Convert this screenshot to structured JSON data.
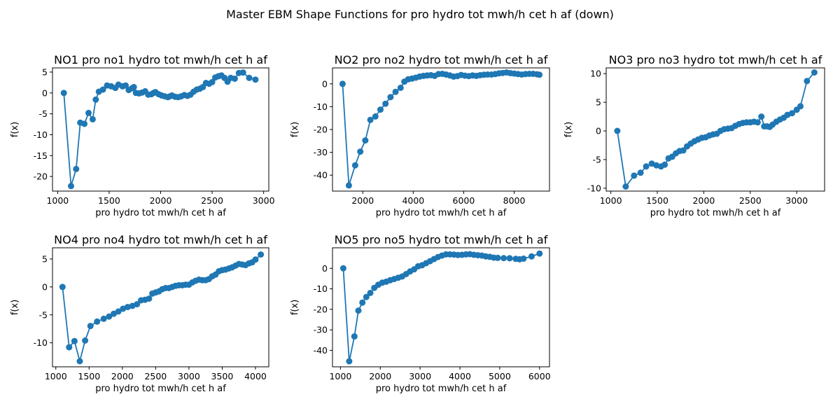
{
  "figure": {
    "title": "Master EBM Shape Functions for pro  hydro tot mwh/h cet h af (down)"
  },
  "colors": {
    "series": "#1f77b4",
    "axes": "#000000"
  },
  "chart_data": [
    {
      "type": "line",
      "title": "NO1 pro no1 hydro tot mwh/h cet h af",
      "xlabel": "pro  hydro tot mwh/h cet h af",
      "ylabel": "f(x)",
      "xlim": [
        950,
        3050
      ],
      "ylim": [
        -23.5,
        6
      ],
      "xticks": [
        1000,
        1500,
        2000,
        2500,
        3000
      ],
      "yticks": [
        -20,
        -15,
        -10,
        -5,
        0,
        5
      ],
      "markers": true,
      "x": [
        1060,
        1130,
        1180,
        1220,
        1260,
        1300,
        1340,
        1370,
        1400,
        1440,
        1480,
        1520,
        1560,
        1590,
        1630,
        1660,
        1690,
        1720,
        1740,
        1760,
        1790,
        1820,
        1850,
        1880,
        1910,
        1930,
        1950,
        1980,
        2010,
        2040,
        2070,
        2090,
        2110,
        2140,
        2170,
        2200,
        2230,
        2260,
        2290,
        2320,
        2350,
        2380,
        2410,
        2440,
        2470,
        2500,
        2530,
        2560,
        2590,
        2620,
        2650,
        2680,
        2720,
        2760,
        2800,
        2860,
        2920
      ],
      "y": [
        0,
        -22.3,
        -18.2,
        -7.1,
        -7.4,
        -4.8,
        -6.3,
        -1.6,
        0.3,
        0.8,
        1.8,
        1.6,
        1.2,
        2.0,
        1.6,
        1.8,
        0.7,
        1.1,
        1.4,
        0.0,
        -0.1,
        0.1,
        0.4,
        -0.4,
        -0.3,
        0.0,
        0.2,
        -0.3,
        -0.6,
        -0.8,
        -1.0,
        -0.8,
        -0.6,
        -0.9,
        -1.0,
        -0.8,
        -0.5,
        -0.7,
        -0.4,
        0.3,
        0.8,
        1.0,
        1.4,
        2.4,
        2.2,
        2.6,
        3.7,
        4.0,
        4.2,
        3.6,
        2.7,
        3.6,
        3.4,
        4.8,
        4.9,
        3.6,
        3.2
      ]
    },
    {
      "type": "line",
      "title": "NO2 pro no2 hydro tot mwh/h cet h af",
      "xlabel": "pro  hydro tot mwh/h cet h af",
      "ylabel": "f(x)",
      "xlim": [
        800,
        9400
      ],
      "ylim": [
        -47,
        7
      ],
      "xticks": [
        2000,
        4000,
        6000,
        8000
      ],
      "yticks": [
        -40,
        -30,
        -20,
        -10,
        0
      ],
      "markers": true,
      "x": [
        1200,
        1450,
        1700,
        1900,
        2100,
        2300,
        2500,
        2700,
        2900,
        3100,
        3300,
        3500,
        3650,
        3800,
        3950,
        4100,
        4250,
        4400,
        4550,
        4700,
        4850,
        5000,
        5150,
        5300,
        5450,
        5600,
        5750,
        5900,
        6050,
        6200,
        6350,
        6500,
        6650,
        6800,
        6950,
        7100,
        7250,
        7400,
        7550,
        7700,
        7850,
        8000,
        8150,
        8300,
        8450,
        8600,
        8750,
        8900,
        9000
      ],
      "y": [
        0,
        -44.5,
        -35.7,
        -29.7,
        -24.8,
        -15.8,
        -14.3,
        -11.3,
        -8.7,
        -5.8,
        -3.5,
        -1.7,
        1.0,
        2.0,
        2.3,
        2.7,
        3.2,
        3.5,
        3.7,
        3.8,
        3.5,
        4.3,
        4.4,
        4.1,
        3.7,
        3.2,
        3.4,
        3.9,
        3.6,
        3.4,
        3.7,
        3.5,
        3.8,
        4.0,
        4.1,
        4.1,
        4.3,
        4.6,
        4.8,
        5.0,
        4.7,
        4.5,
        4.3,
        4.1,
        4.3,
        4.4,
        4.4,
        4.2,
        4.0
      ]
    },
    {
      "type": "line",
      "title": "NO3 pro no3 hydro tot mwh/h cet h af",
      "xlabel": "pro  hydro tot mwh/h cet h af",
      "ylabel": "f(x)",
      "xlim": [
        950,
        3300
      ],
      "ylim": [
        -10.5,
        11
      ],
      "xticks": [
        1000,
        1500,
        2000,
        2500,
        3000
      ],
      "yticks": [
        -10,
        -5,
        0,
        5,
        10
      ],
      "markers": true,
      "x": [
        1070,
        1160,
        1250,
        1320,
        1380,
        1440,
        1490,
        1540,
        1580,
        1620,
        1660,
        1700,
        1740,
        1780,
        1820,
        1860,
        1900,
        1940,
        1980,
        2020,
        2060,
        2100,
        2140,
        2180,
        2220,
        2260,
        2300,
        2340,
        2380,
        2420,
        2460,
        2500,
        2540,
        2580,
        2620,
        2650,
        2680,
        2710,
        2740,
        2780,
        2820,
        2860,
        2900,
        2950,
        3000,
        3040,
        3110,
        3190
      ],
      "y": [
        0,
        -9.7,
        -7.8,
        -7.3,
        -6.2,
        -5.7,
        -6.0,
        -6.2,
        -5.9,
        -4.8,
        -4.5,
        -3.9,
        -3.5,
        -3.4,
        -2.7,
        -2.2,
        -1.8,
        -1.5,
        -1.2,
        -1.1,
        -0.8,
        -0.6,
        -0.5,
        0.0,
        0.3,
        0.4,
        0.5,
        0.9,
        1.2,
        1.4,
        1.5,
        1.5,
        1.6,
        1.5,
        2.5,
        0.8,
        0.8,
        0.7,
        1.1,
        1.6,
        2.0,
        2.3,
        2.8,
        3.1,
        3.7,
        4.3,
        8.7,
        10.2
      ]
    },
    {
      "type": "line",
      "title": "NO4 pro no4 hydro tot mwh/h cet h af",
      "xlabel": "pro  hydro tot mwh/h cet h af",
      "ylabel": "f(x)",
      "xlim": [
        950,
        4200
      ],
      "ylim": [
        -14.3,
        7
      ],
      "xticks": [
        1000,
        1500,
        2000,
        2500,
        3000,
        3500,
        4000
      ],
      "yticks": [
        -10,
        -5,
        0,
        5
      ],
      "markers": true,
      "x": [
        1100,
        1200,
        1280,
        1360,
        1440,
        1520,
        1620,
        1720,
        1800,
        1870,
        1940,
        2010,
        2080,
        2150,
        2220,
        2280,
        2340,
        2400,
        2450,
        2500,
        2550,
        2600,
        2650,
        2700,
        2750,
        2800,
        2850,
        2900,
        2950,
        3000,
        3050,
        3100,
        3150,
        3200,
        3250,
        3300,
        3350,
        3400,
        3450,
        3500,
        3550,
        3600,
        3650,
        3700,
        3750,
        3800,
        3850,
        3900,
        3950,
        4000,
        4080
      ],
      "y": [
        0,
        -10.8,
        -9.7,
        -13.3,
        -9.6,
        -7.0,
        -6.2,
        -5.7,
        -5.3,
        -4.8,
        -4.4,
        -3.9,
        -3.6,
        -3.4,
        -3.1,
        -2.4,
        -2.3,
        -2.1,
        -1.2,
        -1.0,
        -0.8,
        -0.4,
        -0.2,
        -0.2,
        0.0,
        0.2,
        0.3,
        0.3,
        0.4,
        0.4,
        0.8,
        1.1,
        1.3,
        1.2,
        1.2,
        1.4,
        1.9,
        2.2,
        2.8,
        3.0,
        3.1,
        3.3,
        3.5,
        3.8,
        4.1,
        4.0,
        3.9,
        4.2,
        4.4,
        4.9,
        5.8
      ]
    },
    {
      "type": "line",
      "title": "NO5 pro no5 hydro tot mwh/h cet h af",
      "xlabel": "pro  hydro tot mwh/h cet h af",
      "ylabel": "f(x)",
      "xlim": [
        800,
        6250
      ],
      "ylim": [
        -48,
        10
      ],
      "xticks": [
        1000,
        2000,
        3000,
        4000,
        5000,
        6000
      ],
      "yticks": [
        -40,
        -30,
        -20,
        -10,
        0
      ],
      "markers": true,
      "x": [
        1070,
        1220,
        1350,
        1450,
        1550,
        1650,
        1750,
        1850,
        1950,
        2050,
        2150,
        2250,
        2350,
        2450,
        2550,
        2650,
        2750,
        2850,
        2950,
        3050,
        3150,
        3250,
        3350,
        3450,
        3550,
        3650,
        3750,
        3850,
        3950,
        4050,
        4150,
        4250,
        4350,
        4450,
        4550,
        4650,
        4750,
        4850,
        4950,
        5100,
        5250,
        5400,
        5500,
        5600,
        5800,
        6000
      ],
      "y": [
        0,
        -45.3,
        -33.2,
        -20.6,
        -16.7,
        -14.0,
        -12.0,
        -9.5,
        -8.0,
        -7.0,
        -6.5,
        -5.8,
        -5.2,
        -4.6,
        -4.0,
        -2.8,
        -1.5,
        -0.5,
        1.0,
        1.5,
        2.5,
        3.5,
        4.5,
        5.5,
        6.2,
        6.8,
        6.8,
        6.7,
        6.5,
        6.6,
        6.8,
        6.9,
        6.6,
        6.4,
        6.2,
        5.8,
        5.6,
        5.2,
        5.1,
        5.0,
        4.9,
        4.6,
        4.4,
        4.7,
        5.8,
        7.2
      ]
    }
  ]
}
